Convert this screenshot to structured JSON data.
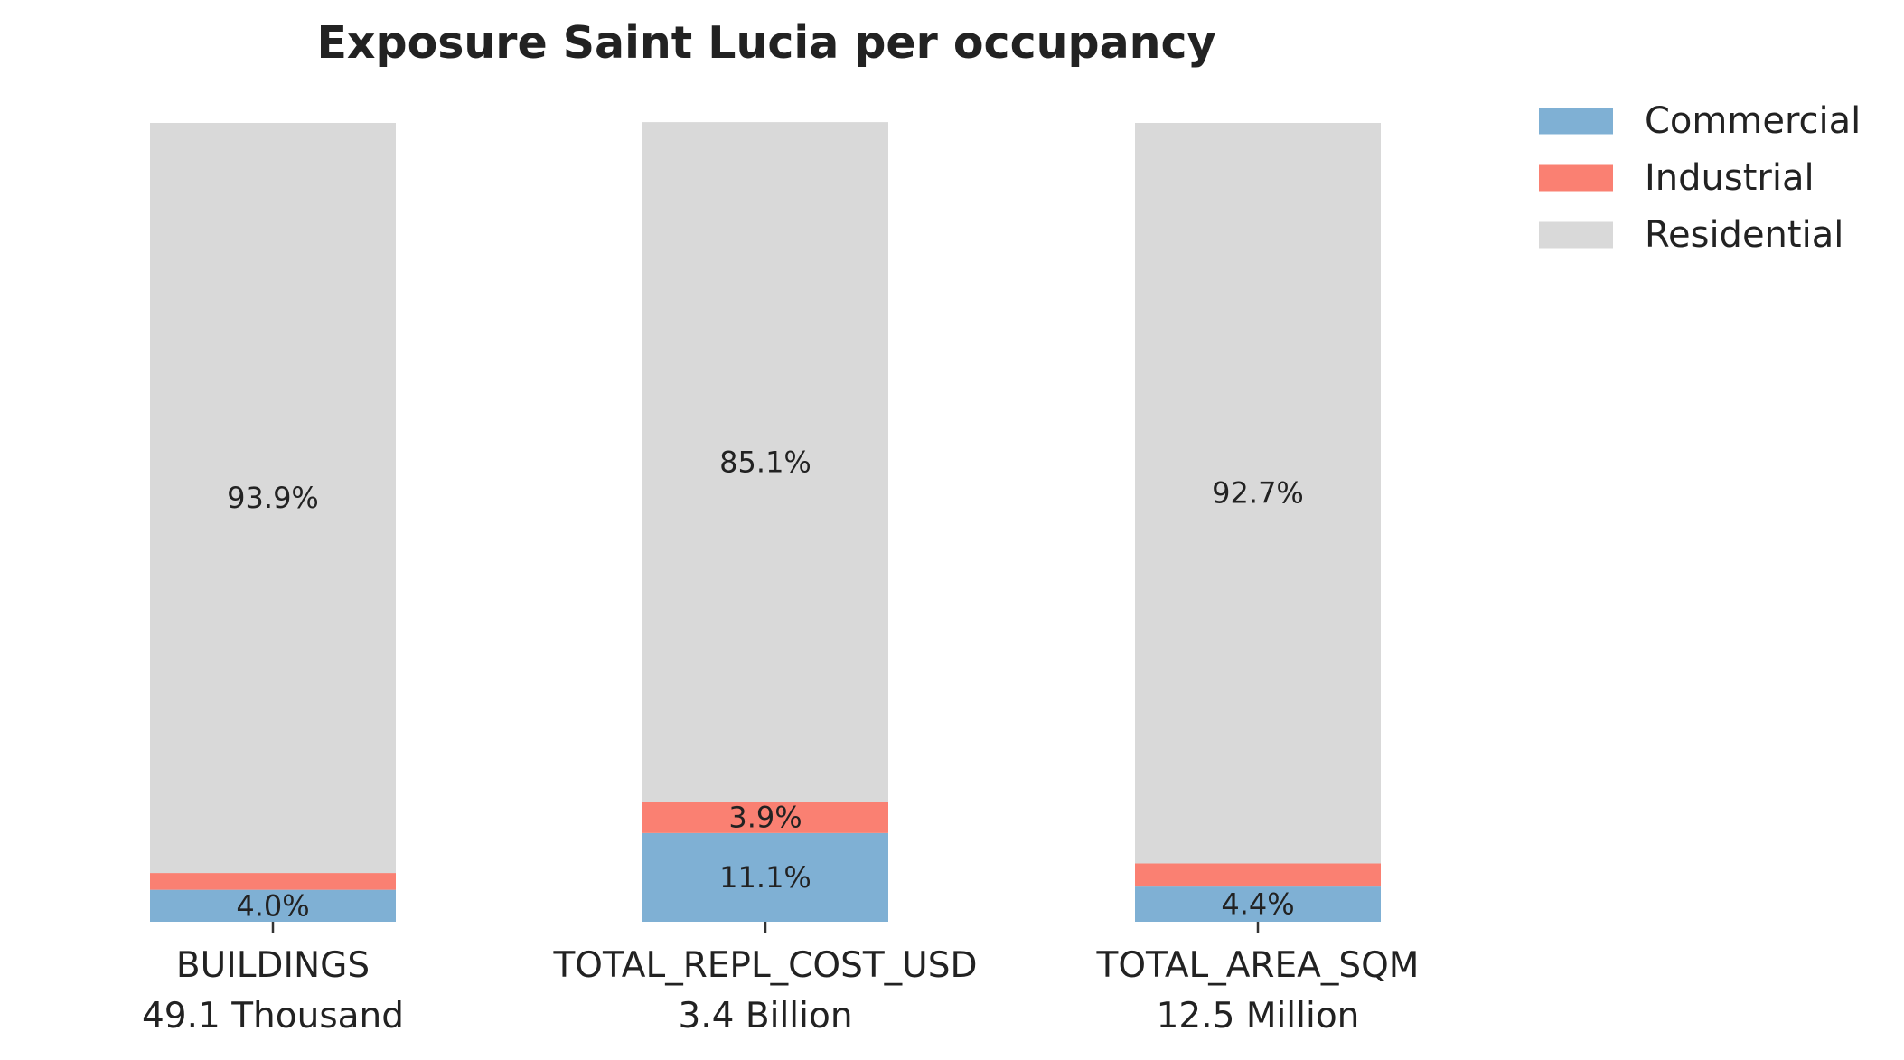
{
  "chart_data": {
    "type": "bar",
    "stacked": true,
    "title": "Exposure Saint Lucia per occupancy",
    "xlabel": "",
    "ylabel": "",
    "ylim": [
      0,
      100
    ],
    "grid": false,
    "legend_position": "top-right",
    "categories": [
      {
        "name": "BUILDINGS",
        "total": "49.1 Thousand"
      },
      {
        "name": "TOTAL_REPL_COST_USD",
        "total": "3.4 Billion"
      },
      {
        "name": "TOTAL_AREA_SQM",
        "total": "12.5 Million"
      }
    ],
    "series": [
      {
        "name": "Commercial",
        "color": "#7fb0d4",
        "values": [
          4.0,
          11.1,
          4.4
        ],
        "labels": [
          "4.0%",
          "11.1%",
          "4.4%"
        ]
      },
      {
        "name": "Industrial",
        "color": "#fa8072",
        "values": [
          2.1,
          3.9,
          2.9
        ],
        "labels": [
          "",
          "3.9%",
          ""
        ]
      },
      {
        "name": "Residential",
        "color": "#d9d9d9",
        "values": [
          93.9,
          85.1,
          92.7
        ],
        "labels": [
          "93.9%",
          "85.1%",
          "92.7%"
        ]
      }
    ]
  }
}
